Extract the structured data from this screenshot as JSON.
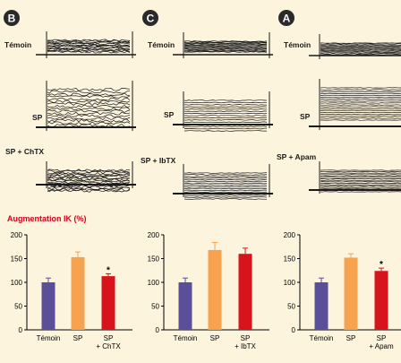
{
  "figure": {
    "ylabel": "Augmentation IK (%)",
    "colors": {
      "background": "#fdf4de",
      "trace": "#1a1a1a",
      "badge": "#2a2a2a",
      "ylabel": "#d0021b",
      "temoin": "#5b4f9a",
      "sp": "#f7a24f",
      "blocker": "#d7141c"
    }
  },
  "chart_data": [
    {
      "panel": "B",
      "type": "bar",
      "trace_labels": [
        "Témoin",
        "SP",
        "SP + ChTX"
      ],
      "categories": [
        "Témoin",
        "SP",
        "SP\n+ ChTX"
      ],
      "values": [
        100,
        153,
        113
      ],
      "errors": [
        9,
        11,
        5
      ],
      "significance": [
        "",
        "",
        "*"
      ],
      "ylim": [
        0,
        200
      ],
      "yticks": [
        0,
        50,
        100,
        150,
        200
      ]
    },
    {
      "panel": "C",
      "type": "bar",
      "trace_labels": [
        "Témoin",
        "SP",
        "SP + IbTX"
      ],
      "categories": [
        "Témoin",
        "SP",
        "SP\n+ IbTX"
      ],
      "values": [
        100,
        168,
        160
      ],
      "errors": [
        9,
        16,
        12
      ],
      "significance": [
        "",
        "",
        ""
      ],
      "ylim": [
        0,
        200
      ],
      "yticks": [
        0,
        50,
        100,
        150,
        200
      ]
    },
    {
      "panel": "A",
      "type": "bar",
      "trace_labels": [
        "Témoin",
        "SP",
        "SP + Apam"
      ],
      "categories": [
        "Témoin",
        "SP",
        "SP\n+ Apam"
      ],
      "values": [
        100,
        152,
        124
      ],
      "errors": [
        9,
        8,
        6
      ],
      "significance": [
        "",
        "",
        "*"
      ],
      "ylim": [
        0,
        200
      ],
      "yticks": [
        0,
        50,
        100,
        150,
        200
      ]
    }
  ]
}
